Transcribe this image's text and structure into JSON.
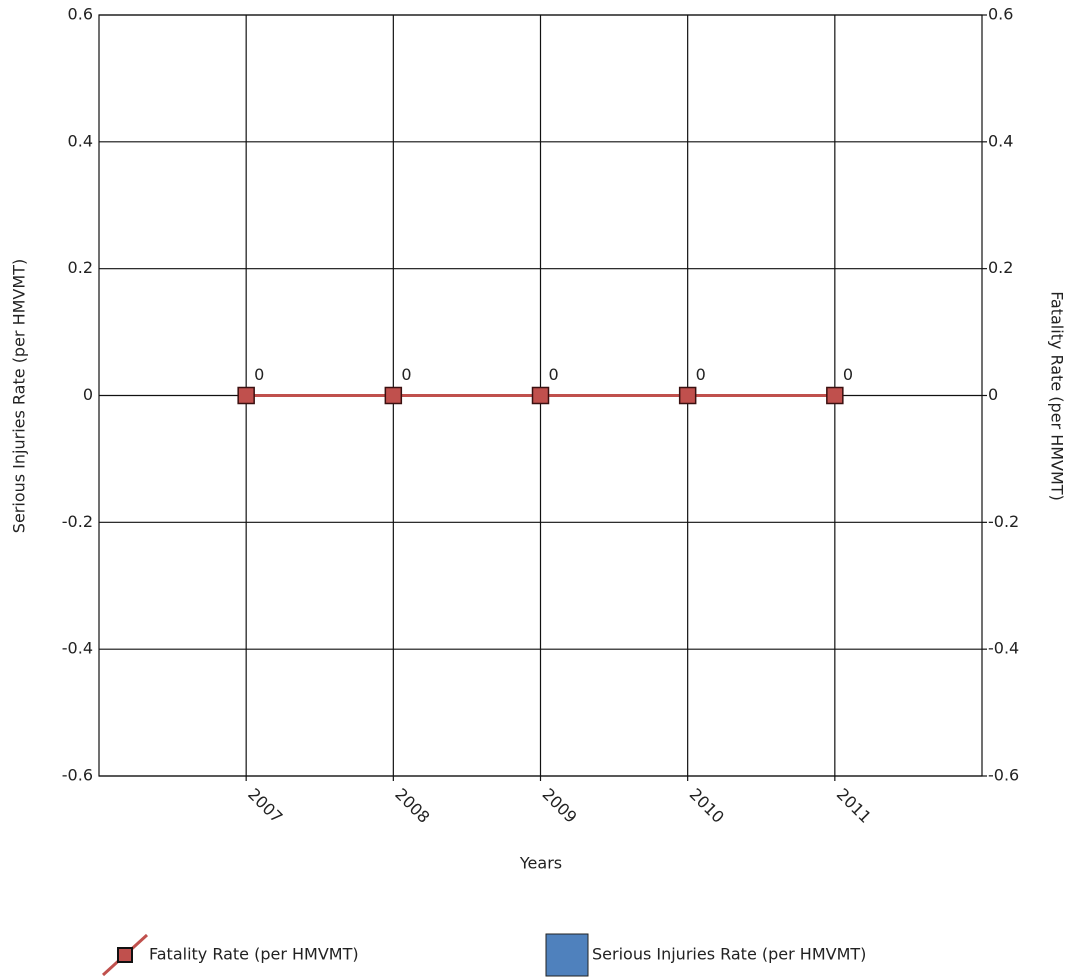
{
  "chart_data": {
    "type": "combo",
    "x_label": "Years",
    "y_label": "Serious Injuries Rate (per HMVMT)",
    "y2_label": "Fatality Rate (per HMVMT)",
    "categories": [
      "2007",
      "2008",
      "2009",
      "2010",
      "2011"
    ],
    "series": [
      {
        "name": "Fatality Rate (per HMVMT)",
        "type": "line",
        "axis": "y2",
        "color": "#c0504d",
        "values": [
          0,
          0,
          0,
          0,
          0
        ]
      },
      {
        "name": "Serious Injuries Rate (per HMVMT)",
        "type": "bar",
        "color": "#4f81bd",
        "values": [
          0,
          0,
          0,
          0,
          0
        ]
      }
    ],
    "ylim": [
      -0.6,
      0.6
    ],
    "yticks": [
      -0.6,
      -0.4,
      -0.2,
      0,
      0.2,
      0.4,
      0.6
    ],
    "y2lim": [
      -0.6,
      0.6
    ],
    "y2ticks": [
      -0.6,
      -0.4,
      -0.2,
      0,
      0.2,
      0.4,
      0.6
    ],
    "grid": true
  }
}
